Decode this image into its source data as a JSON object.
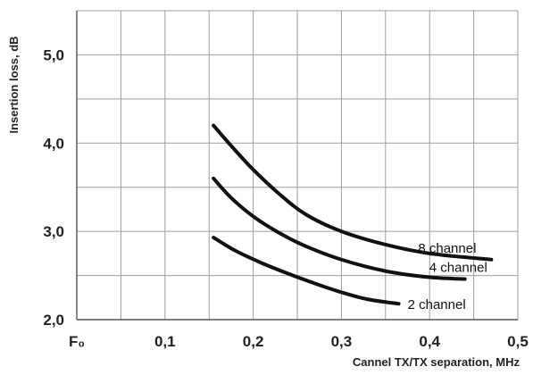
{
  "chart_data": {
    "type": "line",
    "title": "",
    "xlabel": "Cannel TX/TX separation, MHz",
    "ylabel": "Insertion loss, dB",
    "xlim": [
      0.0,
      0.5
    ],
    "ylim": [
      2.0,
      5.5
    ],
    "x_ticks": [
      0.0,
      0.1,
      0.2,
      0.3,
      0.4,
      0.5
    ],
    "x_tick_labels": [
      "F₀",
      "0,1",
      "0,2",
      "0,3",
      "0,4",
      "0,5"
    ],
    "y_ticks": [
      2.0,
      3.0,
      4.0,
      5.0
    ],
    "y_tick_labels": [
      "2,0",
      "3,0",
      "4,0",
      "5,0"
    ],
    "grid": true,
    "series": [
      {
        "name": "8 channel",
        "x": [
          0.155,
          0.175,
          0.2,
          0.23,
          0.26,
          0.3,
          0.35,
          0.4,
          0.47
        ],
        "y": [
          4.2,
          3.97,
          3.7,
          3.42,
          3.19,
          3.0,
          2.85,
          2.75,
          2.68
        ]
      },
      {
        "name": "4 channel",
        "x": [
          0.155,
          0.175,
          0.2,
          0.23,
          0.26,
          0.3,
          0.35,
          0.4,
          0.44
        ],
        "y": [
          3.6,
          3.38,
          3.17,
          2.98,
          2.83,
          2.68,
          2.55,
          2.48,
          2.46
        ]
      },
      {
        "name": "2 channel",
        "x": [
          0.155,
          0.18,
          0.21,
          0.24,
          0.27,
          0.3,
          0.33,
          0.365
        ],
        "y": [
          2.93,
          2.78,
          2.64,
          2.52,
          2.41,
          2.31,
          2.23,
          2.18
        ]
      }
    ]
  }
}
